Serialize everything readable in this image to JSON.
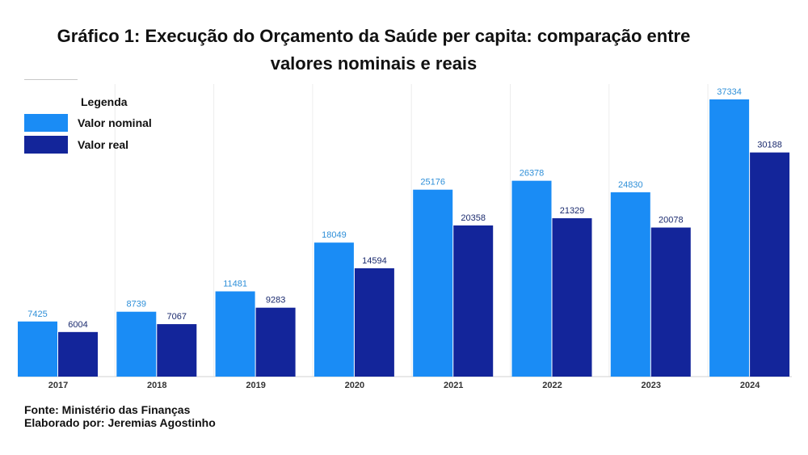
{
  "chart_data": {
    "type": "bar",
    "title": "Gráfico 1: Execução do Orçamento da Saúde per capita: comparação entre valores nominais e reais",
    "title_lines": [
      "Gráfico 1: Execução do Orçamento da Saúde per capita: comparação entre",
      "valores nominais e reais"
    ],
    "categories": [
      "2017",
      "2018",
      "2019",
      "2020",
      "2021",
      "2022",
      "2023",
      "2024"
    ],
    "series": [
      {
        "name": "Valor nominal",
        "color": "#1a8cf5",
        "label_color": "#2e8fd8",
        "values": [
          7425,
          8739,
          11481,
          18049,
          25176,
          26378,
          24830,
          37334
        ]
      },
      {
        "name": "Valor real",
        "color": "#13259a",
        "label_color": "#1a2a6e",
        "values": [
          6004,
          7067,
          9283,
          14594,
          20358,
          21329,
          20078,
          30188
        ]
      }
    ],
    "legend": {
      "title": "Legenda",
      "position": "top-left"
    },
    "xlabel": "",
    "ylabel": "",
    "ylim": [
      0,
      42000
    ],
    "grid": "vertical-category-separators"
  },
  "footer": {
    "source": "Fonte: Ministério das Finanças",
    "author": "Elaborado por: Jeremias Agostinho"
  }
}
